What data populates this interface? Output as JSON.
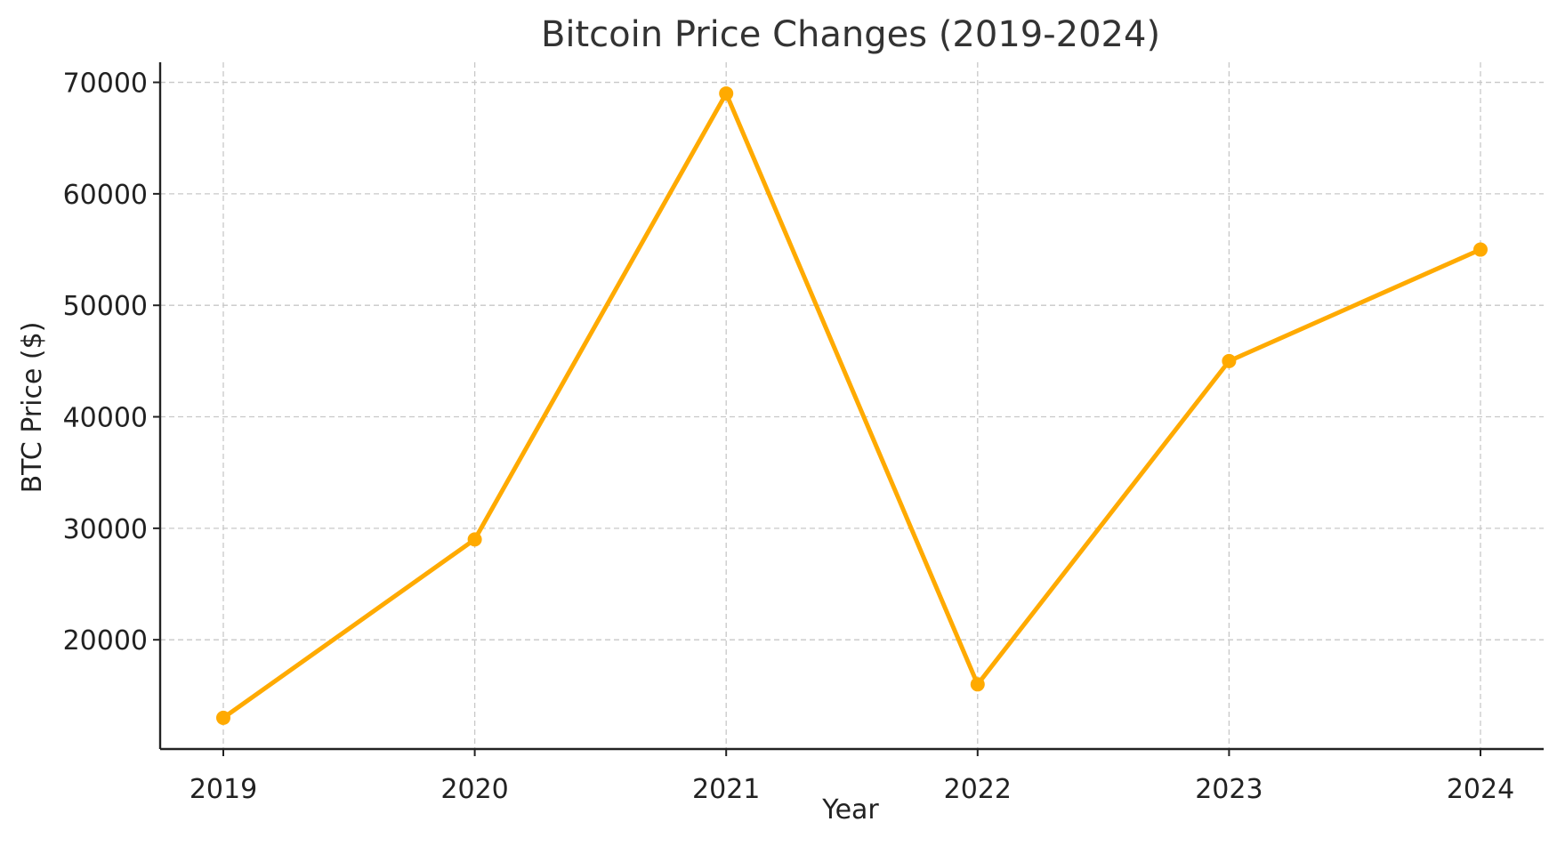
{
  "chart_data": {
    "type": "line",
    "title": "Bitcoin Price Changes (2019-2024)",
    "xlabel": "Year",
    "ylabel": "BTC Price ($)",
    "categories": [
      "2019",
      "2020",
      "2021",
      "2022",
      "2023",
      "2024"
    ],
    "series": [
      {
        "values": [
          13000,
          29000,
          69000,
          16000,
          45000,
          55000
        ]
      }
    ],
    "yticks": [
      20000,
      30000,
      40000,
      50000,
      60000,
      70000
    ],
    "ylim": [
      10200,
      71800
    ],
    "grid": true,
    "line_color": "#FFAA00",
    "legend": "none"
  }
}
